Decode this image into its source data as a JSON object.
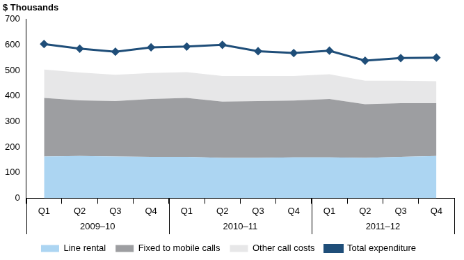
{
  "chart_data": {
    "type": "area",
    "ylabel": "$ Thousands",
    "categories": [
      "Q1",
      "Q2",
      "Q3",
      "Q4",
      "Q1",
      "Q2",
      "Q3",
      "Q4",
      "Q1",
      "Q2",
      "Q3",
      "Q4"
    ],
    "x_groups": [
      {
        "label": "2009–10",
        "count": 4
      },
      {
        "label": "2010–11",
        "count": 4
      },
      {
        "label": "2011–12",
        "count": 4
      }
    ],
    "series": [
      {
        "name": "Line rental",
        "color": "#acd5f2",
        "type": "area",
        "values": [
          163,
          165,
          163,
          162,
          162,
          158,
          158,
          160,
          160,
          158,
          162,
          165
        ]
      },
      {
        "name": "Fixed to mobile calls",
        "color": "#9d9ea1",
        "type": "area",
        "values": [
          229,
          218,
          217,
          226,
          230,
          220,
          222,
          222,
          228,
          210,
          210,
          207
        ]
      },
      {
        "name": "Other call costs",
        "color": "#e7e7e8",
        "type": "area",
        "values": [
          111,
          109,
          103,
          102,
          101,
          100,
          98,
          96,
          97,
          92,
          88,
          86
        ]
      },
      {
        "name": "Total expenditure",
        "color": "#1f4e79",
        "type": "line",
        "marker": "diamond",
        "values": [
          603,
          585,
          573,
          590,
          593,
          600,
          575,
          568,
          577,
          538,
          548,
          550
        ]
      }
    ],
    "ylim": [
      0,
      700
    ],
    "yticks": [
      0,
      100,
      200,
      300,
      400,
      500,
      600,
      700
    ],
    "grid": false,
    "stacked": true,
    "legend": "bottom"
  }
}
